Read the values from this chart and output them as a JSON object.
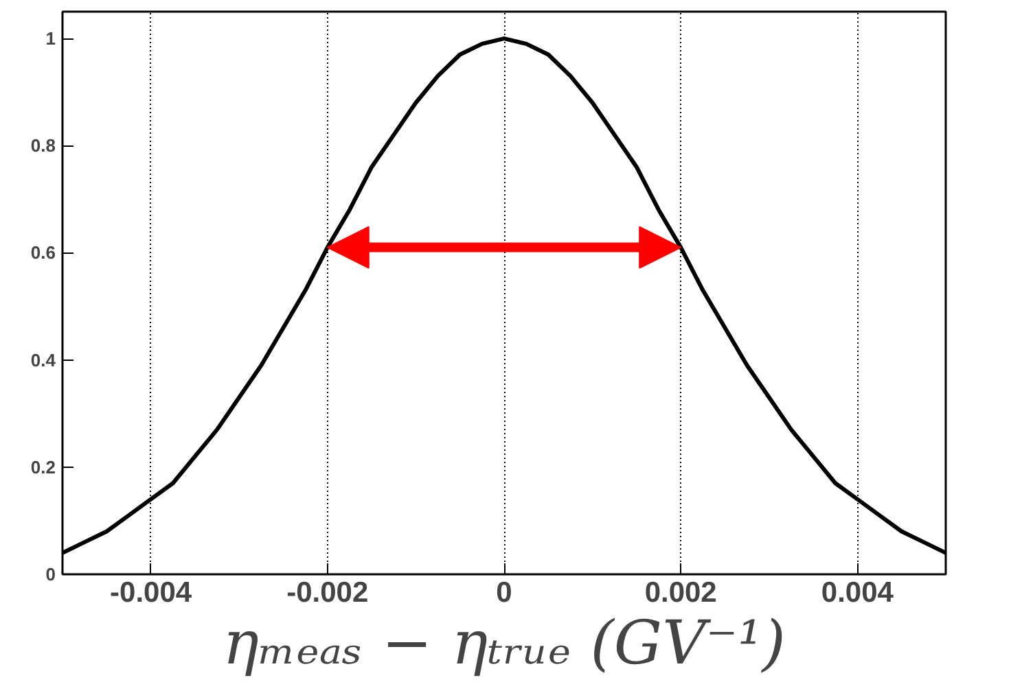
{
  "chart_data": {
    "type": "line",
    "xlabel": "ηₘₑₐₛ − ηₜᵣᵤₑ (GV⁻¹)",
    "x": [
      -0.005,
      -0.00475,
      -0.0045,
      -0.00425,
      -0.004,
      -0.00375,
      -0.0035,
      -0.00325,
      -0.003,
      -0.00275,
      -0.0025,
      -0.00225,
      -0.002,
      -0.00175,
      -0.0015,
      -0.00125,
      -0.001,
      -0.00075,
      -0.0005,
      -0.00025,
      0,
      0.00025,
      0.0005,
      0.00075,
      0.001,
      0.00125,
      0.0015,
      0.00175,
      0.002,
      0.00225,
      0.0025,
      0.00275,
      0.003,
      0.00325,
      0.0035,
      0.00375,
      0.004,
      0.00425,
      0.0045,
      0.00475,
      0.005
    ],
    "series": [
      {
        "color": "#000000",
        "values": [
          0.04,
          0.06,
          0.08,
          0.11,
          0.14,
          0.17,
          0.22,
          0.27,
          0.33,
          0.39,
          0.46,
          0.53,
          0.61,
          0.68,
          0.76,
          0.82,
          0.88,
          0.93,
          0.97,
          0.99,
          1.0,
          0.99,
          0.97,
          0.93,
          0.88,
          0.82,
          0.76,
          0.68,
          0.61,
          0.53,
          0.46,
          0.39,
          0.33,
          0.27,
          0.22,
          0.17,
          0.14,
          0.11,
          0.08,
          0.06,
          0.04
        ]
      }
    ],
    "xlim": [
      -0.005,
      0.005
    ],
    "ylim": [
      0,
      1.05
    ],
    "xticks": [
      -0.004,
      -0.002,
      0,
      0.002,
      0.004
    ],
    "yticks": [
      0,
      0.2,
      0.4,
      0.6,
      0.8,
      1
    ],
    "grid": "x",
    "marker": "none",
    "line_style": "solid"
  }
}
